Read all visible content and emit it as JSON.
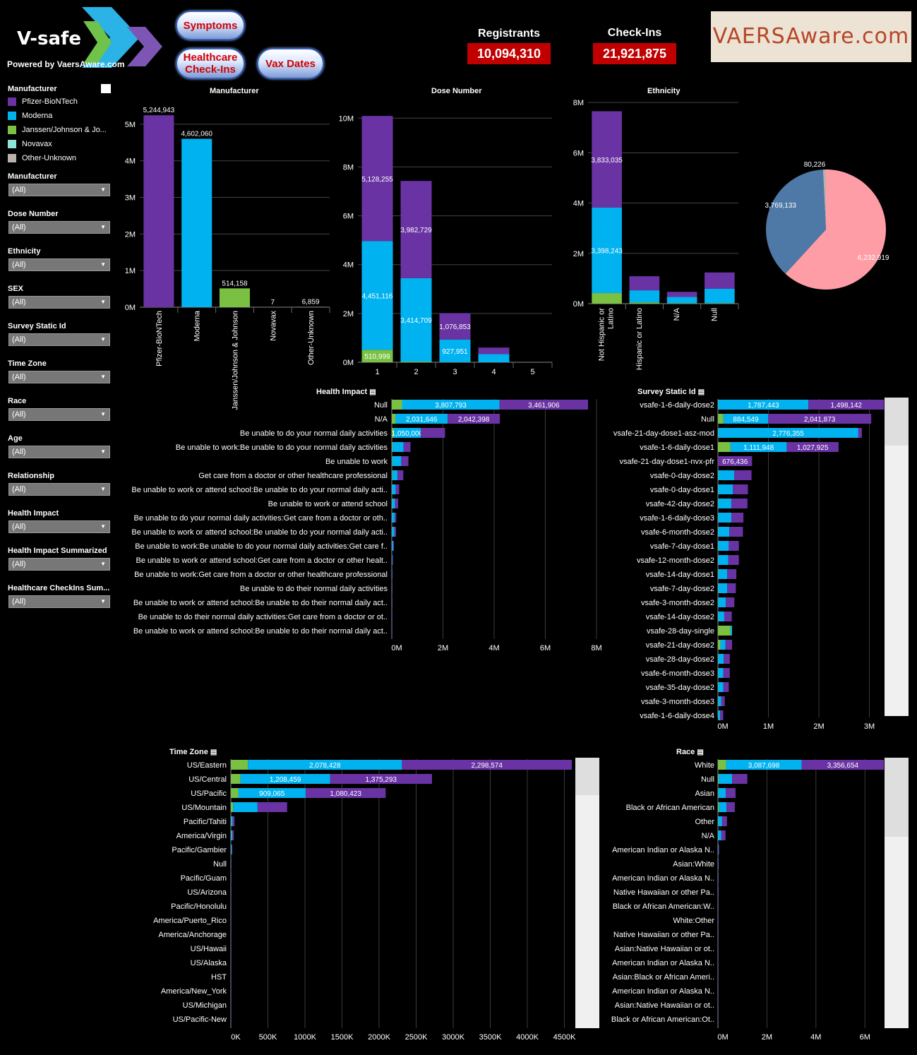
{
  "header": {
    "logo_text": "V-safe",
    "powered_by": "Powered by VaersAware.com",
    "buttons": {
      "symptoms": "Symptoms",
      "healthcare": "Healthcare Check-Ins",
      "vax_dates": "Vax Dates"
    },
    "registrants_label": "Registrants",
    "registrants_value": "10,094,310",
    "checkins_label": "Check-Ins",
    "checkins_value": "21,921,875",
    "brand": "VAERSAware.com"
  },
  "colors": {
    "pfizer": "#6a33a3",
    "moderna": "#00b3f0",
    "janssen": "#7ac043",
    "novavax": "#8fe3d6",
    "other": "#bab0ac",
    "pie_pink": "#ff9da7",
    "pie_blue": "#4e79a7",
    "kpi_red": "#c00000",
    "brand_text": "#b74527"
  },
  "legend": {
    "title": "Manufacturer",
    "items": [
      {
        "label": "Pfizer-BioNTech",
        "color": "#6a33a3"
      },
      {
        "label": "Moderna",
        "color": "#00b3f0"
      },
      {
        "label": "Janssen/Johnson & Jo...",
        "color": "#7ac043"
      },
      {
        "label": "Novavax",
        "color": "#8fe3d6"
      },
      {
        "label": "Other-Unknown",
        "color": "#bab0ac"
      }
    ]
  },
  "filters": [
    {
      "label": "Manufacturer",
      "value": "(All)"
    },
    {
      "label": "Dose Number",
      "value": "(All)"
    },
    {
      "label": "Ethnicity",
      "value": "(All)"
    },
    {
      "label": "SEX",
      "value": "(All)"
    },
    {
      "label": "Survey Static Id",
      "value": "(All)"
    },
    {
      "label": "Time Zone",
      "value": "(All)"
    },
    {
      "label": "Race",
      "value": "(All)"
    },
    {
      "label": "Age",
      "value": "(All)"
    },
    {
      "label": "Relationship",
      "value": "(All)"
    },
    {
      "label": "Health Impact",
      "value": "(All)"
    },
    {
      "label": "Health Impact Summarized",
      "value": "(All)"
    },
    {
      "label": "Healthcare CheckIns Sum...",
      "value": "(All)"
    }
  ],
  "chart_data": [
    {
      "id": "manufacturer",
      "type": "bar",
      "title": "Manufacturer",
      "categories": [
        "Pfizer-BioNTech",
        "Moderna",
        "Janssen/Johnson & Johnson",
        "Novavax",
        "Other-Unknown"
      ],
      "values": [
        5244943,
        4602060,
        514158,
        7,
        6859
      ],
      "value_labels": [
        "5,244,943",
        "4,602,060",
        "514,158",
        "7",
        "6,859"
      ],
      "ylim": [
        0,
        5500000
      ],
      "yticks": [
        "0M",
        "1M",
        "2M",
        "3M",
        "4M",
        "5M"
      ]
    },
    {
      "id": "dose",
      "type": "bar",
      "title": "Dose Number",
      "categories": [
        "1",
        "2",
        "3",
        "4",
        "5"
      ],
      "series": [
        {
          "name": "Janssen/Johnson & Jo...",
          "values": [
            510999,
            30000,
            5000,
            2000,
            0
          ]
        },
        {
          "name": "Moderna",
          "values": [
            4451116,
            3414709,
            927951,
            330000,
            0
          ]
        },
        {
          "name": "Pfizer-BioNTech",
          "values": [
            5128255,
            3982729,
            1076853,
            270000,
            0
          ]
        }
      ],
      "labels": [
        {
          "cat": 0,
          "series": 0,
          "text": "510,999"
        },
        {
          "cat": 0,
          "series": 1,
          "text": "4,451,116"
        },
        {
          "cat": 0,
          "series": 2,
          "text": "5,128,255"
        },
        {
          "cat": 1,
          "series": 1,
          "text": "3,414,709"
        },
        {
          "cat": 1,
          "series": 2,
          "text": "3,982,729"
        },
        {
          "cat": 2,
          "series": 1,
          "text": "927,951"
        },
        {
          "cat": 2,
          "series": 2,
          "text": "1,076,853"
        }
      ],
      "ylim": [
        0,
        10500000
      ],
      "yticks": [
        "0M",
        "2M",
        "4M",
        "6M",
        "8M",
        "10M"
      ]
    },
    {
      "id": "ethnicity",
      "type": "bar",
      "title": "Ethnicity",
      "categories": [
        "Not Hispanic or Latino",
        "Hispanic or Latino",
        "N/A",
        "Null"
      ],
      "series": [
        {
          "name": "Janssen/Johnson & Jo...",
          "values": [
            420000,
            50000,
            20000,
            20000
          ]
        },
        {
          "name": "Moderna",
          "values": [
            3398243,
            480000,
            250000,
            570000
          ]
        },
        {
          "name": "Pfizer-BioNTech",
          "values": [
            3833035,
            560000,
            200000,
            650000
          ]
        }
      ],
      "labels": [
        {
          "cat": 0,
          "series": 1,
          "text": "3,398,243"
        },
        {
          "cat": 0,
          "series": 2,
          "text": "3,833,035"
        }
      ],
      "ylim": [
        0,
        8200000
      ],
      "yticks": [
        "0M",
        "2M",
        "4M",
        "6M",
        "8M"
      ]
    },
    {
      "id": "sex_pie",
      "type": "pie",
      "slices": [
        {
          "value": 6232919,
          "label": "6,232,919",
          "color": "#ff9da7"
        },
        {
          "value": 3769133,
          "label": "3,769,133",
          "color": "#4e79a7"
        },
        {
          "value": 80226,
          "label": "80,226",
          "color": "#bab0ac"
        }
      ]
    },
    {
      "id": "health_impact",
      "type": "bar",
      "orientation": "horizontal",
      "title": "Health Impact",
      "categories": [
        "Null",
        "N/A",
        "Be unable to do your normal daily activities",
        "Be unable to work:Be unable to do your normal daily activities",
        "Be unable to work",
        "Get care from a doctor or other healthcare professional",
        "Be unable to work or attend school:Be unable to do your normal daily acti..",
        "Be unable to work or attend school",
        "Be unable to do your normal daily activities:Get care from a doctor or oth..",
        "Be unable to work or attend school:Be unable to do your normal daily acti..",
        "Be unable to work:Be unable to do your normal daily activities:Get care f..",
        "Be unable to work or attend school:Get care from a doctor or other healt..",
        "Be unable to work:Get care from a doctor or other healthcare professional",
        "Be unable to do their normal daily activities",
        "Be unable to work or attend school:Be unable to do their normal daily act..",
        "Be unable to do their normal daily activities:Get care from a doctor or ot..",
        "Be unable to work or attend school:Be unable to do their normal daily act.."
      ],
      "series": [
        {
          "name": "Janssen/Johnson & Jo...",
          "values": [
            400000,
            150000,
            80000,
            30000,
            20000,
            20000,
            10000,
            10000,
            5000,
            5000,
            3000,
            2000,
            1000,
            500,
            500,
            300,
            200
          ]
        },
        {
          "name": "Moderna",
          "values": [
            3807793,
            2031646,
            1050000,
            430000,
            350000,
            200000,
            140000,
            120000,
            110000,
            100000,
            50000,
            20000,
            10000,
            5000,
            5000,
            3000,
            2000
          ]
        },
        {
          "name": "Pfizer-BioNTech",
          "values": [
            3461906,
            2042398,
            950000,
            270000,
            280000,
            230000,
            140000,
            120000,
            60000,
            60000,
            30000,
            20000,
            10000,
            5000,
            4000,
            3000,
            2000
          ]
        }
      ],
      "labels": [
        "3,807,793",
        "3,461,906",
        "2,031,646",
        "2,042,398"
      ],
      "xlim": [
        0,
        8000000
      ],
      "xticks": [
        "0M",
        "2M",
        "4M",
        "6M",
        "8M"
      ]
    },
    {
      "id": "survey",
      "type": "bar",
      "orientation": "horizontal",
      "title": "Survey Static Id",
      "categories": [
        "vsafe-1-6-daily-dose2",
        "Null",
        "vsafe-21-day-dose1-asz-mod",
        "vsafe-1-6-daily-dose1",
        "vsafe-21-day-dose1-nvx-pfr",
        "vsafe-0-day-dose2",
        "vsafe-0-day-dose1",
        "vsafe-42-day-dose2",
        "vsafe-1-6-daily-dose3",
        "vsafe-6-month-dose2",
        "vsafe-7-day-dose1",
        "vsafe-12-month-dose2",
        "vsafe-14-day-dose1",
        "vsafe-7-day-dose2",
        "vsafe-3-month-dose2",
        "vsafe-14-day-dose2",
        "vsafe-28-day-single",
        "vsafe-21-day-dose2",
        "vsafe-28-day-dose2",
        "vsafe-6-month-dose3",
        "vsafe-35-day-dose2",
        "vsafe-3-month-dose3",
        "vsafe-1-6-daily-dose4"
      ],
      "series": [
        {
          "name": "Janssen/Johnson & Jo...",
          "values": [
            5000,
            110000,
            5000,
            250000,
            0,
            5000,
            5000,
            5000,
            5000,
            5000,
            5000,
            5000,
            5000,
            5000,
            5000,
            5000,
            250000,
            50000,
            5000,
            5000,
            5000,
            5000,
            5000
          ]
        },
        {
          "name": "Moderna",
          "values": [
            1787443,
            884549,
            2776355,
            1111948,
            0,
            320000,
            290000,
            260000,
            260000,
            220000,
            210000,
            200000,
            180000,
            180000,
            150000,
            120000,
            30000,
            100000,
            110000,
            100000,
            100000,
            60000,
            40000
          ]
        },
        {
          "name": "Pfizer-BioNTech",
          "values": [
            1498142,
            2041873,
            70000,
            1027925,
            676436,
            340000,
            300000,
            320000,
            240000,
            270000,
            200000,
            210000,
            180000,
            170000,
            170000,
            150000,
            0,
            130000,
            120000,
            130000,
            110000,
            70000,
            60000
          ]
        }
      ],
      "labels": [
        "1,787,443",
        "1,498,142",
        "884,549",
        "2,041,873",
        "2,776,355",
        "1,111,948",
        "1,027,925",
        "676,436"
      ],
      "xlim": [
        0,
        3300000
      ],
      "xticks": [
        "0M",
        "1M",
        "2M",
        "3M"
      ]
    },
    {
      "id": "timezone",
      "type": "bar",
      "orientation": "horizontal",
      "title": "Time Zone",
      "categories": [
        "US/Eastern",
        "US/Central",
        "US/Pacific",
        "US/Mountain",
        "Pacific/Tahiti",
        "America/Virgin",
        "Pacific/Gambier",
        "Null",
        "Pacific/Guam",
        "US/Arizona",
        "Pacific/Honolulu",
        "America/Puerto_Rico",
        "America/Anchorage",
        "US/Hawaii",
        "US/Alaska",
        "HST",
        "America/New_York",
        "US/Michigan",
        "US/Pacific-New"
      ],
      "series": [
        {
          "name": "Janssen/Johnson & Jo...",
          "values": [
            230000,
            130000,
            100000,
            30000,
            5000,
            5000,
            2000,
            500,
            300,
            200,
            200,
            100,
            100,
            100,
            50,
            50,
            20,
            10,
            10
          ]
        },
        {
          "name": "Moderna",
          "values": [
            2078428,
            1208459,
            909065,
            330000,
            20000,
            15000,
            10000,
            1000,
            800,
            600,
            500,
            400,
            300,
            200,
            100,
            100,
            50,
            20,
            10
          ]
        },
        {
          "name": "Pfizer-BioNTech",
          "values": [
            2298574,
            1375293,
            1080423,
            399522,
            25000,
            20000,
            8000,
            1000,
            900,
            700,
            500,
            400,
            300,
            200,
            100,
            100,
            50,
            20,
            10
          ]
        }
      ],
      "labels": [
        "2,078,428",
        "2,298,574",
        "1,208,459",
        "1,375,293",
        "909,065",
        "1,080,423",
        "399,522"
      ],
      "xlim": [
        0,
        4600000
      ],
      "xticks": [
        "0K",
        "500K",
        "1000K",
        "1500K",
        "2000K",
        "2500K",
        "3000K",
        "3500K",
        "4000K",
        "4500K"
      ]
    },
    {
      "id": "race",
      "type": "bar",
      "orientation": "horizontal",
      "title": "Race",
      "categories": [
        "White",
        "Null",
        "Asian",
        "Black or African American",
        "Other",
        "N/A",
        "American Indian or Alaska N..",
        "Asian:White",
        "American Indian or Alaska N..",
        "Native Hawaiian or other Pa..",
        "Black or African American:W..",
        "White:Other",
        "Native Hawaiian or other Pa..",
        "Asian:Native Hawaiian or ot..",
        "American Indian or Alaska N..",
        "Asian:Black or African Ameri..",
        "American Indian or Alaska N..",
        "Asian:Native Hawaiian or ot..",
        "Black or African American:Ot.."
      ],
      "series": [
        {
          "name": "Janssen/Johnson & Jo...",
          "values": [
            330000,
            30000,
            20000,
            40000,
            10000,
            10000,
            2000,
            1000,
            500,
            500,
            300,
            200,
            100,
            100,
            100,
            50,
            50,
            20,
            10
          ]
        },
        {
          "name": "Moderna",
          "values": [
            3087698,
            550000,
            300000,
            310000,
            160000,
            130000,
            20000,
            10000,
            5000,
            5000,
            3000,
            2000,
            1000,
            1000,
            500,
            300,
            200,
            100,
            50
          ]
        },
        {
          "name": "Pfizer-BioNTech",
          "values": [
            3356654,
            620000,
            400000,
            340000,
            200000,
            170000,
            25000,
            12000,
            6000,
            6000,
            3000,
            2000,
            1000,
            1000,
            500,
            300,
            200,
            100,
            50
          ]
        }
      ],
      "labels": [
        "3,087,698",
        "3,356,654"
      ],
      "xlim": [
        0,
        6800000
      ],
      "xticks": [
        "0M",
        "2M",
        "4M",
        "6M"
      ]
    }
  ]
}
